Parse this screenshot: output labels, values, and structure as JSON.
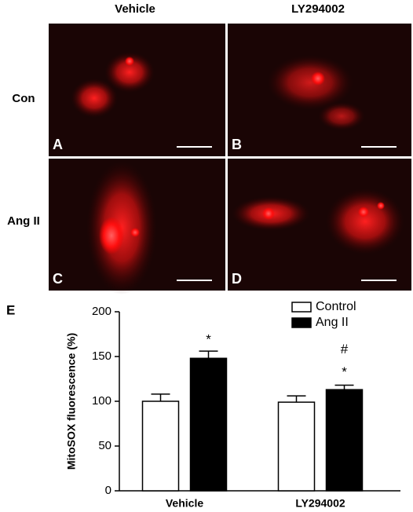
{
  "figure": {
    "columns": [
      "Vehicle",
      "LY294002"
    ],
    "rows": [
      "Con",
      "Ang II"
    ],
    "panels": [
      "A",
      "B",
      "C",
      "D"
    ],
    "chart_panel": "E"
  },
  "chart_data": {
    "type": "bar",
    "ylabel": "MitoSOX fluorescence (%)",
    "categories": [
      "Vehicle",
      "LY294002"
    ],
    "series": [
      {
        "name": "Control",
        "color": "#ffffff",
        "values": [
          100,
          99
        ],
        "errors": [
          8,
          7
        ]
      },
      {
        "name": "Ang II",
        "color": "#000000",
        "values": [
          148,
          113
        ],
        "errors": [
          8,
          5
        ]
      }
    ],
    "annotations": [
      "*",
      "#",
      "*"
    ],
    "ylim": [
      0,
      200
    ],
    "yticks": [
      0,
      50,
      100,
      150,
      200
    ],
    "legend": "top-right"
  }
}
